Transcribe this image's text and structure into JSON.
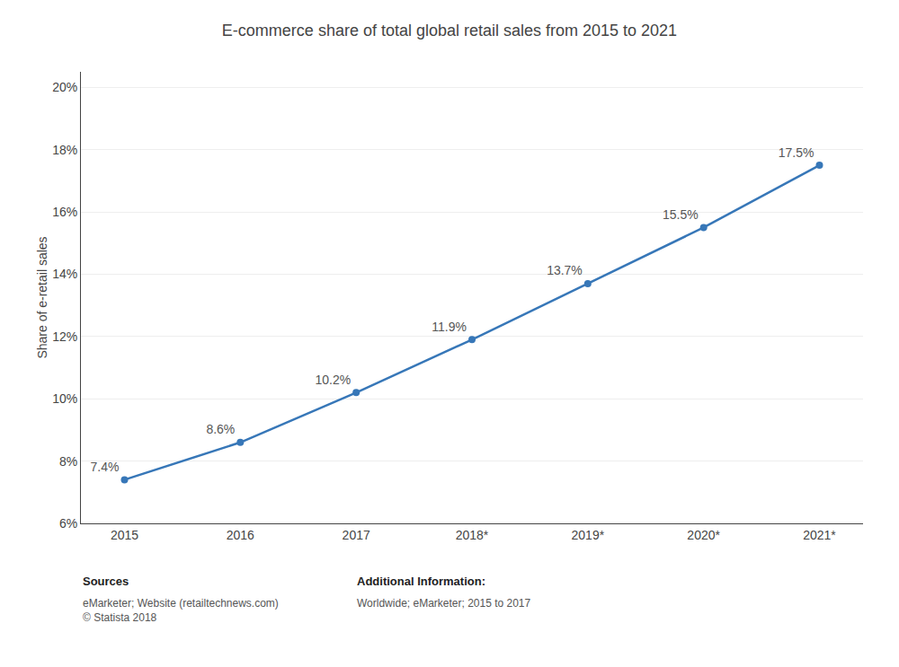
{
  "chart_data": {
    "type": "line",
    "title": "E-commerce share of total global retail sales from 2015 to 2021",
    "categories": [
      "2015",
      "2016",
      "2017",
      "2018*",
      "2019*",
      "2020*",
      "2021*"
    ],
    "values": [
      7.4,
      8.6,
      10.2,
      11.9,
      13.7,
      15.5,
      17.5
    ],
    "value_labels": [
      "7.4%",
      "8.6%",
      "10.2%",
      "11.9%",
      "13.7%",
      "15.5%",
      "17.5%"
    ],
    "data_labels": true,
    "color": "#3777b8",
    "marker": "circle",
    "ylabel": "Share of e-retail sales",
    "ylim": [
      6,
      20.5
    ],
    "yticks": [
      {
        "value": 6,
        "label": "6%"
      },
      {
        "value": 8,
        "label": "8%"
      },
      {
        "value": 10,
        "label": "10%"
      },
      {
        "value": 12,
        "label": "12%"
      },
      {
        "value": 14,
        "label": "14%"
      },
      {
        "value": 16,
        "label": "16%"
      },
      {
        "value": 18,
        "label": "18%"
      },
      {
        "value": 20,
        "label": "20%"
      }
    ],
    "grid": true,
    "annotations": [
      "Sources",
      "eMarketer; Website (retailtechnews.com)\n© Statista 2018",
      "Additional Information:",
      "Worldwide; eMarketer; 2015 to 2017"
    ]
  }
}
